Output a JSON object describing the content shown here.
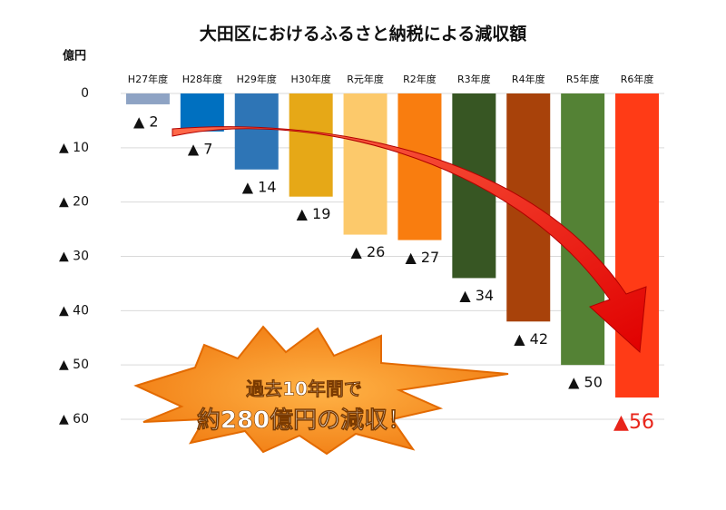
{
  "chart_data": {
    "type": "bar",
    "title": "大田区におけるふるさと納税による減収額",
    "y_label": "億円",
    "categories": [
      "H27年度",
      "H28年度",
      "H29年度",
      "H30年度",
      "R元年度",
      "R2年度",
      "R3年度",
      "R4年度",
      "R5年度",
      "R6年度"
    ],
    "values": [
      -2,
      -7,
      -14,
      -19,
      -26,
      -27,
      -34,
      -42,
      -50,
      -56
    ],
    "value_labels": [
      "▲ 2",
      "▲ 7",
      "▲ 14",
      "▲ 19",
      "▲ 26",
      "▲ 27",
      "▲ 34",
      "▲ 42",
      "▲ 50",
      "▲56"
    ],
    "colors": [
      "#8ea3c4",
      "#0070c0",
      "#2e75b6",
      "#e6a817",
      "#fcc96b",
      "#f97d0f",
      "#375623",
      "#a8420a",
      "#548235",
      "#ff3b16"
    ],
    "ylim": [
      -60,
      0
    ],
    "yticks": [
      0,
      {
        "value": -10,
        "label": "▲ 10"
      },
      {
        "value": -20,
        "label": "▲ 20"
      },
      {
        "value": -30,
        "label": "▲ 30"
      },
      {
        "value": -40,
        "label": "▲ 40"
      },
      {
        "value": -50,
        "label": "▲ 50"
      },
      {
        "value": -60,
        "label": "▲ 60"
      }
    ],
    "grid": true,
    "annotation": [
      "過去10年間で",
      "約280億円の減収！"
    ]
  }
}
